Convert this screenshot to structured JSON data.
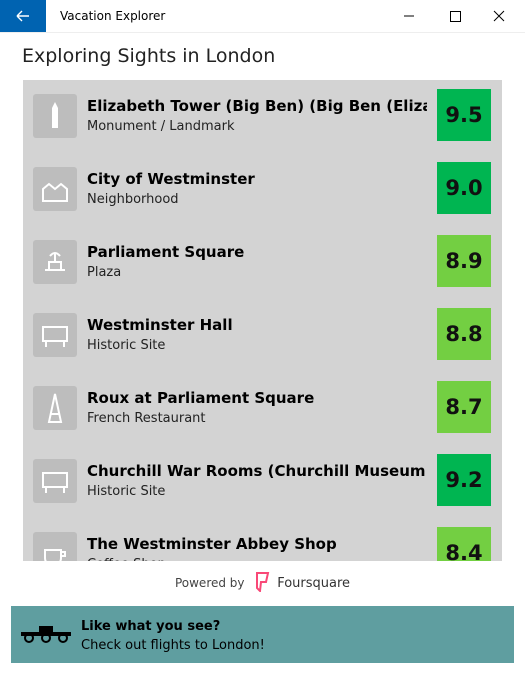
{
  "window": {
    "title": "Vacation Explorer"
  },
  "header": {
    "title": "Exploring Sights in London"
  },
  "venues": [
    {
      "name": "Elizabeth Tower (Big Ben) (Big Ben (Elizabe…",
      "category": "Monument / Landmark",
      "rating": "9.5",
      "color": "#00b551"
    },
    {
      "name": "City of Westminster",
      "category": "Neighborhood",
      "rating": "9.0",
      "color": "#00b551"
    },
    {
      "name": "Parliament Square",
      "category": "Plaza",
      "rating": "8.9",
      "color": "#73cf42"
    },
    {
      "name": "Westminster Hall",
      "category": "Historic Site",
      "rating": "8.8",
      "color": "#73cf42"
    },
    {
      "name": "Roux at Parliament Square",
      "category": "French Restaurant",
      "rating": "8.7",
      "color": "#73cf42"
    },
    {
      "name": "Churchill War Rooms (Churchill Museum &…",
      "category": "Historic Site",
      "rating": "9.2",
      "color": "#00b551"
    },
    {
      "name": "The Westminster Abbey Shop",
      "category": "Coffee Shop",
      "rating": "8.4",
      "color": "#73cf42"
    }
  ],
  "footer": {
    "powered_by": "Powered by",
    "brand": "Foursquare"
  },
  "banner": {
    "title": "Like what you see?",
    "subtitle": "Check out flights to London!"
  }
}
